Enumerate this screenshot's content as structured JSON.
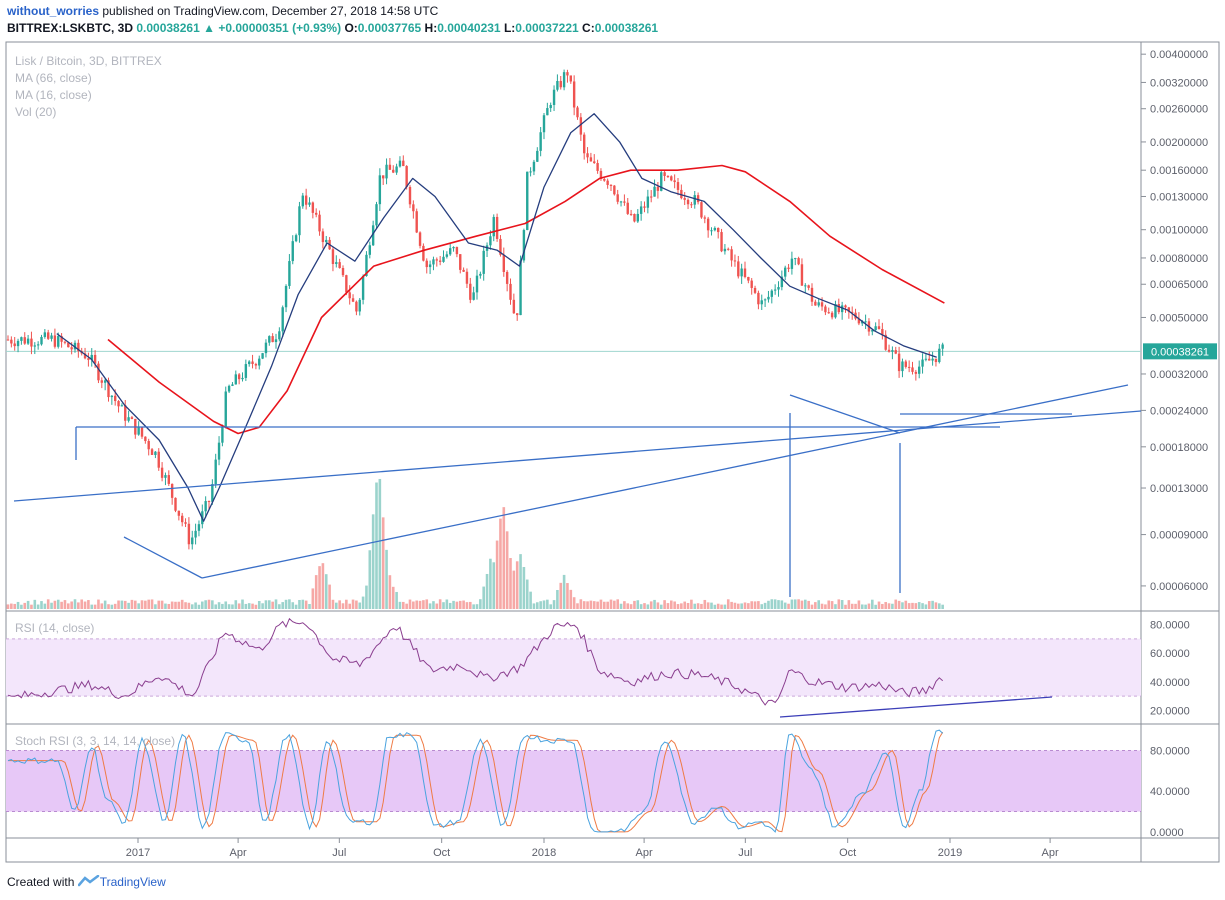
{
  "header": {
    "user": "without_worries",
    "published": "published on TradingView.com, December 27, 2018 14:58 UTC",
    "symbol": "BITTREX:LSKBTC, 3D",
    "last": "0.00038261",
    "change": "+0.00000351 (+0.93%)",
    "open_label": "O:",
    "open": "0.00037765",
    "high_label": "H:",
    "high": "0.00040231",
    "low_label": "L:",
    "low": "0.00037221",
    "close_label": "C:",
    "close": "0.00038261"
  },
  "legend": {
    "title": "Lisk / Bitcoin, 3D, BITTREX",
    "ma66": "MA (66, close)",
    "ma16": "MA (16, close)",
    "vol": "Vol (20)",
    "rsi": "RSI (14, close)",
    "stoch": "Stoch RSI (3, 3, 14, 14, close)"
  },
  "footer": {
    "created": "Created with",
    "brand": "TradingView"
  },
  "colors": {
    "up": "#26a69a",
    "down": "#ef5350",
    "ma66": "#e8141c",
    "ma16": "#253d7e",
    "drawing": "#3a6fc7",
    "rsi_line": "#8a3e8f",
    "rsi_band": "#f3e6fb",
    "stoch_band": "#e7c8f7",
    "stoch_k": "#4aa3df",
    "stoch_d": "#ef7b45",
    "price_tag": "#26a69a"
  },
  "chart_data": [
    {
      "type": "candlestick",
      "title": "Lisk / Bitcoin, 3D, BITTREX",
      "x_ticks": [
        "2017",
        "Apr",
        "Jul",
        "Oct",
        "2018",
        "Apr",
        "Jul",
        "Oct",
        "2019",
        "Apr"
      ],
      "y_scale": "log",
      "y_ticks": [
        "0.00400000",
        "0.00320000",
        "0.00260000",
        "0.00200000",
        "0.00160000",
        "0.00130000",
        "0.00100000",
        "0.00080000",
        "0.00065000",
        "0.00050000",
        "0.00032000",
        "0.00024000",
        "0.00018000",
        "0.00013000",
        "0.00009000",
        "0.00006000"
      ],
      "ylim": [
        5e-05,
        0.0042
      ],
      "last_price_label": "0.00038261",
      "last_price": 0.00038261,
      "ohlc_anchors": [
        [
          "2016-10-20",
          0.00042
        ],
        [
          "2016-11-20",
          0.00037
        ],
        [
          "2016-12-20",
          0.00024
        ],
        [
          "2017-01-20",
          0.00017
        ],
        [
          "2017-02-20",
          8.5e-05
        ],
        [
          "2017-03-10",
          0.00012
        ],
        [
          "2017-03-25",
          0.00028
        ],
        [
          "2017-04-20",
          0.00036
        ],
        [
          "2017-05-10",
          0.00045
        ],
        [
          "2017-06-01",
          0.00135
        ],
        [
          "2017-06-25",
          0.00085
        ],
        [
          "2017-07-20",
          0.00052
        ],
        [
          "2017-08-10",
          0.00155
        ],
        [
          "2017-08-30",
          0.00165
        ],
        [
          "2017-09-20",
          0.00075
        ],
        [
          "2017-10-15",
          0.00085
        ],
        [
          "2017-11-01",
          0.00058
        ],
        [
          "2017-11-20",
          0.0011
        ],
        [
          "2017-12-10",
          0.00048
        ],
        [
          "2017-12-20",
          0.0015
        ],
        [
          "2018-01-10",
          0.0028
        ],
        [
          "2018-01-25",
          0.0035
        ],
        [
          "2018-02-10",
          0.00175
        ],
        [
          "2018-03-05",
          0.00145
        ],
        [
          "2018-03-25",
          0.00105
        ],
        [
          "2018-04-20",
          0.0015
        ],
        [
          "2018-05-20",
          0.00125
        ],
        [
          "2018-06-20",
          0.0008
        ],
        [
          "2018-07-20",
          0.00055
        ],
        [
          "2018-08-01",
          0.00065
        ],
        [
          "2018-08-15",
          0.0008
        ],
        [
          "2018-09-05",
          0.00055
        ],
        [
          "2018-10-15",
          0.0005
        ],
        [
          "2018-11-01",
          0.00045
        ],
        [
          "2018-11-20",
          0.00034
        ],
        [
          "2018-12-10",
          0.00034
        ],
        [
          "2018-12-27",
          0.00038261
        ]
      ],
      "series": [
        {
          "name": "MA (66, close)",
          "values": [
            [
              "2016-12-05",
              0.00042
            ],
            [
              "2017-01-20",
              0.0003
            ],
            [
              "2017-03-10",
              0.00022
            ],
            [
              "2017-04-01",
              0.0002
            ],
            [
              "2017-04-20",
              0.00021
            ],
            [
              "2017-05-15",
              0.00028
            ],
            [
              "2017-06-15",
              0.0005
            ],
            [
              "2017-08-01",
              0.00075
            ],
            [
              "2017-09-15",
              0.00085
            ],
            [
              "2017-11-01",
              0.00095
            ],
            [
              "2017-12-15",
              0.00105
            ],
            [
              "2018-01-20",
              0.00125
            ],
            [
              "2018-02-20",
              0.0015
            ],
            [
              "2018-03-20",
              0.0016
            ],
            [
              "2018-05-01",
              0.0016
            ],
            [
              "2018-06-10",
              0.00166
            ],
            [
              "2018-07-01",
              0.00158
            ],
            [
              "2018-08-10",
              0.00125
            ],
            [
              "2018-09-15",
              0.00095
            ],
            [
              "2018-11-01",
              0.00073
            ],
            [
              "2018-12-27",
              0.00056
            ]
          ]
        },
        {
          "name": "MA (16, close)",
          "values": [
            [
              "2016-10-20",
              0.00044
            ],
            [
              "2016-11-20",
              0.00036
            ],
            [
              "2016-12-20",
              0.00025
            ],
            [
              "2017-01-20",
              0.00019
            ],
            [
              "2017-02-15",
              0.00013
            ],
            [
              "2017-03-01",
              0.0001
            ],
            [
              "2017-03-15",
              0.00013
            ],
            [
              "2017-04-10",
              0.00022
            ],
            [
              "2017-05-01",
              0.00034
            ],
            [
              "2017-05-25",
              0.0006
            ],
            [
              "2017-06-20",
              0.0009
            ],
            [
              "2017-07-15",
              0.00078
            ],
            [
              "2017-08-10",
              0.0011
            ],
            [
              "2017-09-05",
              0.0015
            ],
            [
              "2017-09-25",
              0.0013
            ],
            [
              "2017-10-25",
              0.0009
            ],
            [
              "2017-11-20",
              0.00085
            ],
            [
              "2017-12-10",
              0.00075
            ],
            [
              "2018-01-01",
              0.0014
            ],
            [
              "2018-01-25",
              0.00215
            ],
            [
              "2018-02-15",
              0.0025
            ],
            [
              "2018-03-10",
              0.002
            ],
            [
              "2018-03-30",
              0.0015
            ],
            [
              "2018-04-25",
              0.00135
            ],
            [
              "2018-05-25",
              0.00125
            ],
            [
              "2018-06-20",
              0.001
            ],
            [
              "2018-07-15",
              0.0008
            ],
            [
              "2018-08-10",
              0.00064
            ],
            [
              "2018-09-05",
              0.00058
            ],
            [
              "2018-10-01",
              0.00053
            ],
            [
              "2018-10-25",
              0.00045
            ],
            [
              "2018-11-20",
              0.0004
            ],
            [
              "2018-12-20",
              0.000365
            ]
          ]
        }
      ]
    },
    {
      "type": "bar",
      "title": "Vol (20)",
      "values_relative": [
        [
          "2017-08-01",
          0.3
        ],
        [
          "2017-08-05",
          1.0
        ],
        [
          "2017-08-12",
          0.32
        ],
        [
          "2017-11-15",
          0.36
        ],
        [
          "2017-11-25",
          0.75
        ],
        [
          "2017-12-10",
          0.38
        ],
        [
          "2017-06-15",
          0.32
        ],
        [
          "2018-01-20",
          0.22
        ],
        [
          "2018-08-01",
          0.06
        ]
      ]
    },
    {
      "type": "line",
      "title": "RSI (14, close)",
      "y_ticks": [
        "80.0000",
        "60.0000",
        "40.0000",
        "20.0000"
      ],
      "ylim": [
        12,
        88
      ],
      "band": [
        30,
        70
      ],
      "series": [
        {
          "values": [
            [
              "2016-10-20",
              34
            ],
            [
              "2016-11-20",
              38
            ],
            [
              "2016-12-20",
              30
            ],
            [
              "2017-01-20",
              45
            ],
            [
              "2017-02-20",
              30
            ],
            [
              "2017-03-20",
              75
            ],
            [
              "2017-04-20",
              62
            ],
            [
              "2017-05-10",
              80
            ],
            [
              "2017-06-01",
              82
            ],
            [
              "2017-06-25",
              56
            ],
            [
              "2017-07-20",
              52
            ],
            [
              "2017-08-20",
              80
            ],
            [
              "2017-09-20",
              48
            ],
            [
              "2017-10-20",
              52
            ],
            [
              "2017-11-10",
              42
            ],
            [
              "2017-12-10",
              50
            ],
            [
              "2018-01-10",
              78
            ],
            [
              "2018-01-30",
              80
            ],
            [
              "2018-02-20",
              48
            ],
            [
              "2018-03-20",
              40
            ],
            [
              "2018-04-20",
              46
            ],
            [
              "2018-05-20",
              45
            ],
            [
              "2018-06-20",
              38
            ],
            [
              "2018-07-10",
              30
            ],
            [
              "2018-07-28",
              23
            ],
            [
              "2018-08-10",
              48
            ],
            [
              "2018-09-01",
              40
            ],
            [
              "2018-10-01",
              36
            ],
            [
              "2018-11-01",
              38
            ],
            [
              "2018-11-20",
              32
            ],
            [
              "2018-12-10",
              34
            ],
            [
              "2018-12-27",
              45
            ]
          ]
        }
      ]
    },
    {
      "type": "line",
      "title": "Stoch RSI (3, 3, 14, 14, close)",
      "y_ticks": [
        "80.0000",
        "40.0000",
        "0.0000"
      ],
      "ylim": [
        -4,
        104
      ],
      "band": [
        20,
        80
      ],
      "series": [
        {
          "name": "K",
          "values": [
            [
              "2016-10-20",
              70
            ],
            [
              "2016-11-05",
              20
            ],
            [
              "2016-11-20",
              85
            ],
            [
              "2016-12-05",
              30
            ],
            [
              "2016-12-20",
              10
            ],
            [
              "2017-01-05",
              90
            ],
            [
              "2017-01-25",
              10
            ],
            [
              "2017-02-10",
              95
            ],
            [
              "2017-03-01",
              5
            ],
            [
              "2017-03-20",
              95
            ],
            [
              "2017-04-10",
              90
            ],
            [
              "2017-04-25",
              10
            ],
            [
              "2017-05-15",
              95
            ],
            [
              "2017-06-05",
              5
            ],
            [
              "2017-06-20",
              90
            ],
            [
              "2017-07-10",
              10
            ],
            [
              "2017-07-30",
              10
            ],
            [
              "2017-08-15",
              95
            ],
            [
              "2017-09-05",
              95
            ],
            [
              "2017-09-25",
              5
            ],
            [
              "2017-10-15",
              10
            ],
            [
              "2017-11-05",
              90
            ],
            [
              "2017-11-25",
              5
            ],
            [
              "2017-12-15",
              95
            ],
            [
              "2018-01-05",
              90
            ],
            [
              "2018-01-25",
              90
            ],
            [
              "2018-02-15",
              0
            ],
            [
              "2018-03-10",
              0
            ],
            [
              "2018-04-01",
              20
            ],
            [
              "2018-04-20",
              90
            ],
            [
              "2018-05-15",
              10
            ],
            [
              "2018-06-05",
              25
            ],
            [
              "2018-06-25",
              5
            ],
            [
              "2018-07-15",
              10
            ],
            [
              "2018-07-28",
              0
            ],
            [
              "2018-08-10",
              95
            ],
            [
              "2018-08-30",
              60
            ],
            [
              "2018-09-20",
              5
            ],
            [
              "2018-10-15",
              40
            ],
            [
              "2018-11-05",
              80
            ],
            [
              "2018-11-20",
              5
            ],
            [
              "2018-12-05",
              40
            ],
            [
              "2018-12-20",
              98
            ]
          ]
        }
      ]
    }
  ]
}
